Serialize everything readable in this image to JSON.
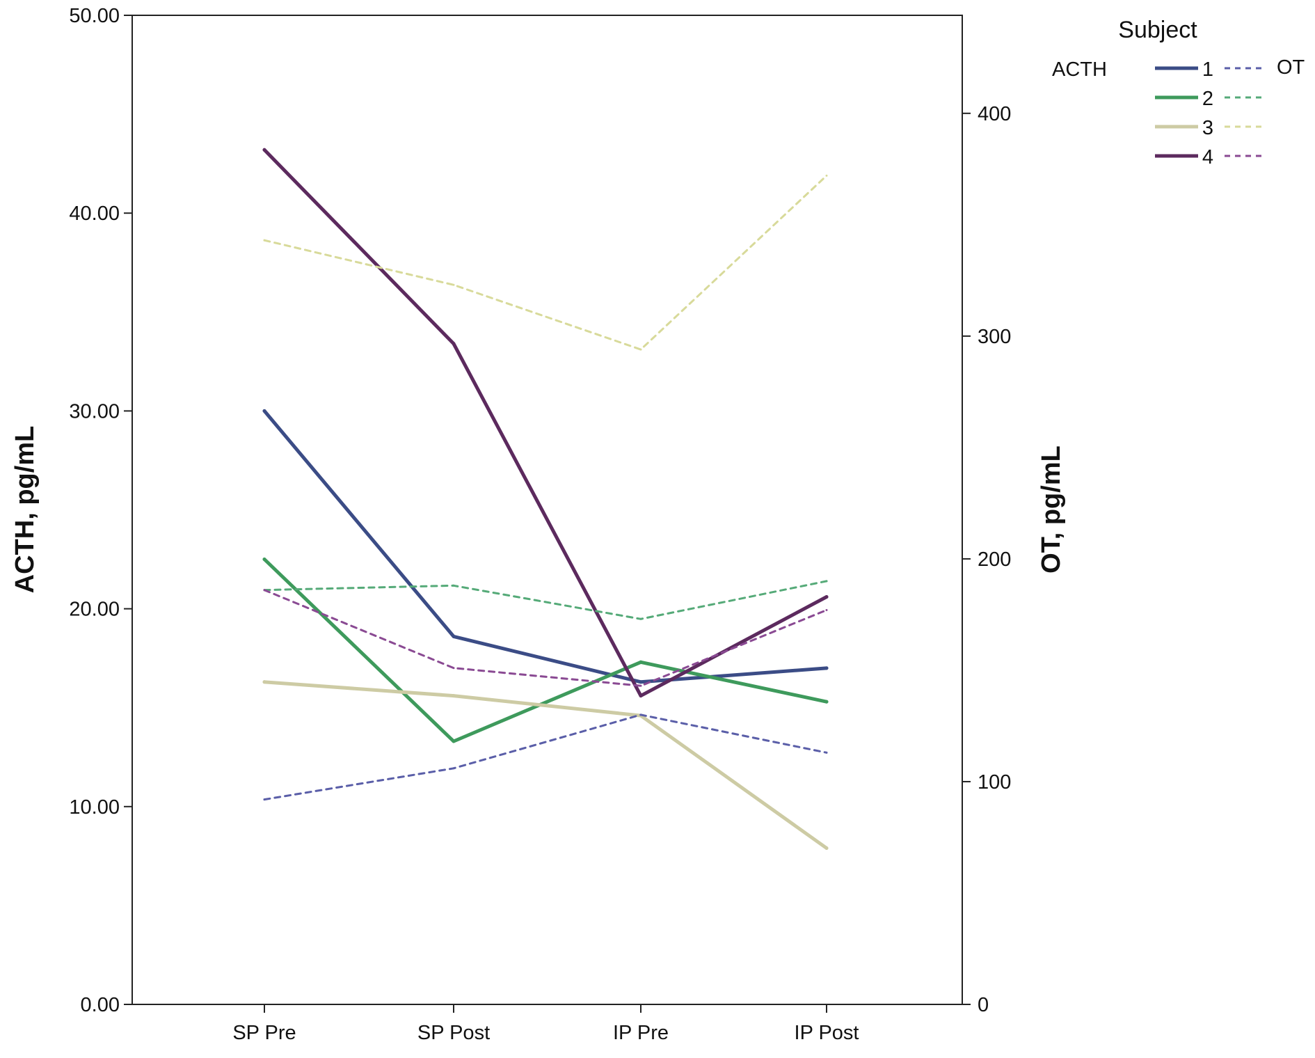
{
  "chart_data": {
    "type": "line",
    "categories": [
      "SP Pre",
      "SP Post",
      "IP Pre",
      "IP Post"
    ],
    "y_left": {
      "label": "ACTH, pg/mL",
      "lim": [
        0,
        50
      ],
      "ticks": [
        0,
        10,
        20,
        30,
        40,
        50
      ],
      "tick_labels": [
        "0.00",
        "10.00",
        "20.00",
        "30.00",
        "40.00",
        "50.00"
      ]
    },
    "y_right": {
      "label": "OT, pg/mL",
      "lim": [
        0,
        444
      ],
      "ticks": [
        0,
        100,
        200,
        300,
        400
      ],
      "tick_labels": [
        "0",
        "100",
        "200",
        "300",
        "400"
      ]
    },
    "legend": {
      "title": "Subject",
      "left_label": "ACTH",
      "right_label": "OT",
      "position": "top-right",
      "entries": [
        "1",
        "2",
        "3",
        "4"
      ]
    },
    "grid": false,
    "series": [
      {
        "subject": "1",
        "measure": "ACTH",
        "axis": "left",
        "style": "solid",
        "color": "#3b4c86",
        "values": [
          30.0,
          18.6,
          16.3,
          17.0
        ]
      },
      {
        "subject": "2",
        "measure": "ACTH",
        "axis": "left",
        "style": "solid",
        "color": "#3e9a5c",
        "values": [
          22.5,
          13.3,
          17.3,
          15.3
        ]
      },
      {
        "subject": "3",
        "measure": "ACTH",
        "axis": "left",
        "style": "solid",
        "color": "#cdcba4",
        "values": [
          16.3,
          15.6,
          14.6,
          7.9
        ]
      },
      {
        "subject": "4",
        "measure": "ACTH",
        "axis": "left",
        "style": "solid",
        "color": "#5c2a5e",
        "values": [
          43.2,
          33.4,
          15.6,
          20.6
        ]
      },
      {
        "subject": "1",
        "measure": "OT",
        "axis": "right",
        "style": "dashed",
        "color": "#5a5ea8",
        "values": [
          92,
          106,
          130,
          113
        ]
      },
      {
        "subject": "2",
        "measure": "OT",
        "axis": "right",
        "style": "dashed",
        "color": "#55aa78",
        "values": [
          186,
          188,
          173,
          190
        ]
      },
      {
        "subject": "3",
        "measure": "OT",
        "axis": "right",
        "style": "dashed",
        "color": "#d8da9a",
        "values": [
          343,
          323,
          294,
          372
        ]
      },
      {
        "subject": "4",
        "measure": "OT",
        "axis": "right",
        "style": "dashed",
        "color": "#8a4a93",
        "values": [
          186,
          151,
          143,
          177
        ]
      }
    ]
  }
}
